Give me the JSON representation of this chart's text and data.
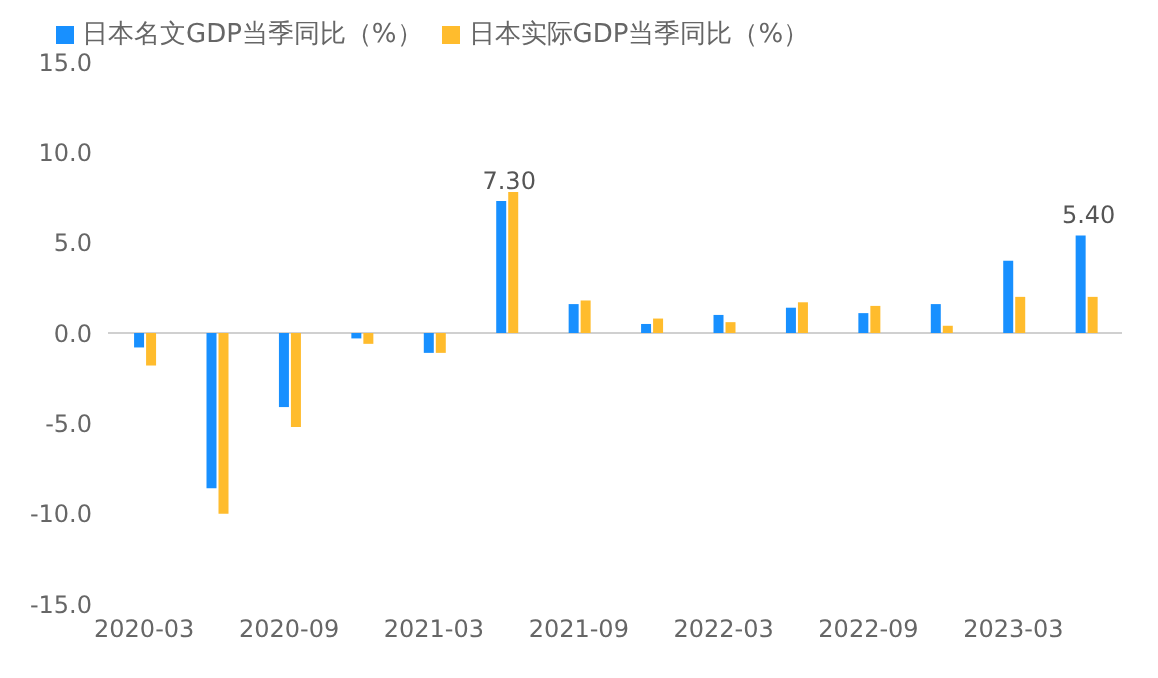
{
  "chart_data": {
    "type": "bar",
    "categories": [
      "2020-03",
      null,
      "2020-09",
      null,
      "2021-03",
      null,
      "2021-09",
      null,
      "2022-03",
      null,
      "2022-09",
      null,
      "2023-03",
      null
    ],
    "series": [
      {
        "name": "日本名文GDP当季同比（%）",
        "color": "#1890ff",
        "values": [
          -0.8,
          -8.6,
          -4.1,
          -0.3,
          -1.1,
          7.3,
          1.6,
          0.5,
          1.0,
          1.4,
          1.1,
          1.6,
          4.0,
          5.4
        ],
        "value_labels": [
          null,
          null,
          null,
          null,
          null,
          "7.30",
          null,
          null,
          null,
          null,
          null,
          null,
          null,
          "5.40"
        ]
      },
      {
        "name": "日本实际GDP当季同比（%）",
        "color": "#ffbc2d",
        "values": [
          -1.8,
          -10.0,
          -5.2,
          -0.6,
          -1.1,
          7.8,
          1.8,
          0.8,
          0.6,
          1.7,
          1.5,
          0.4,
          2.0,
          2.0
        ]
      }
    ],
    "ylim": [
      -15,
      15
    ],
    "yticks": [
      {
        "value": -15,
        "label": "-15.0"
      },
      {
        "value": -10,
        "label": "-10.0"
      },
      {
        "value": -5,
        "label": "-5.0"
      },
      {
        "value": 0,
        "label": "0.0"
      },
      {
        "value": 5,
        "label": "5.0"
      },
      {
        "value": 10,
        "label": "10.0"
      },
      {
        "value": 15,
        "label": "15.0"
      }
    ],
    "legend": "top left"
  }
}
